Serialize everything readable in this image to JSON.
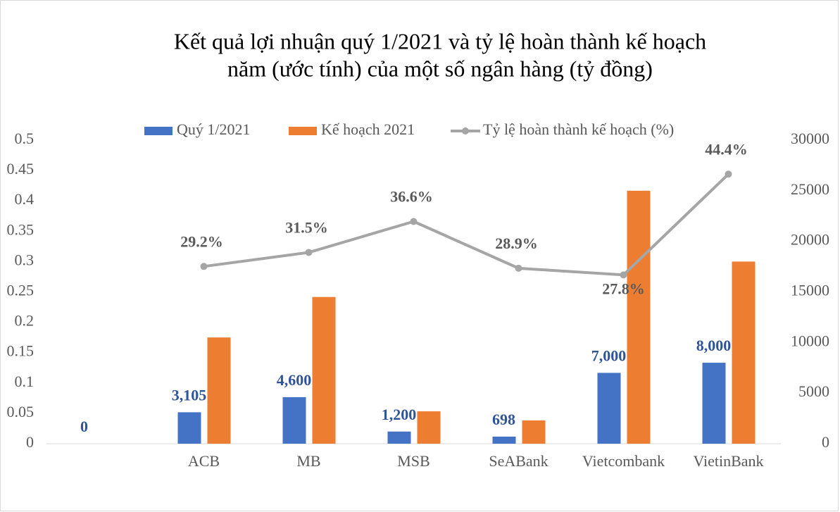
{
  "chart_data": {
    "type": "bar-line",
    "title": "Kết quả lợi nhuận quý 1/2021 và tỷ lệ hoàn thành kế hoạch",
    "subtitle": "năm (ước tính) của một số ngân hàng (tỷ đồng)",
    "categories": [
      null,
      "ACB",
      "MB",
      "MSB",
      "SeABank",
      "Vietcombank",
      "VietinBank"
    ],
    "series": [
      {
        "name": "Quý 1/2021",
        "type": "bar",
        "axis": "y2",
        "color": "#4472c4",
        "values": [
          0,
          3105,
          4600,
          1200,
          698,
          7000,
          8000
        ],
        "value_labels": [
          "0",
          "3,105",
          "4,600",
          "1,200",
          "698",
          "7,000",
          "8,000"
        ]
      },
      {
        "name": "Kế hoạch 2021",
        "type": "bar",
        "axis": "y2",
        "color": "#ed7d31",
        "values": [
          null,
          10500,
          14500,
          3200,
          2300,
          25000,
          18000
        ]
      },
      {
        "name": "Tỷ lệ hoàn thành kế hoạch (%)",
        "type": "line",
        "axis": "y",
        "color": "#a5a5a5",
        "values": [
          null,
          0.292,
          0.315,
          0.366,
          0.289,
          0.278,
          0.444
        ],
        "value_labels": [
          null,
          "29.2%",
          "31.5%",
          "36.6%",
          "28.9%",
          "27.8%",
          "44.4%"
        ]
      }
    ],
    "ylim": [
      0,
      0.5
    ],
    "yticks": [
      0,
      0.05,
      0.1,
      0.15,
      0.2,
      0.25,
      0.3,
      0.35,
      0.4,
      0.45,
      0.5
    ],
    "y2lim": [
      0,
      30000
    ],
    "y2ticks": [
      0,
      5000,
      10000,
      15000,
      20000,
      25000,
      30000
    ],
    "legend": "top"
  }
}
